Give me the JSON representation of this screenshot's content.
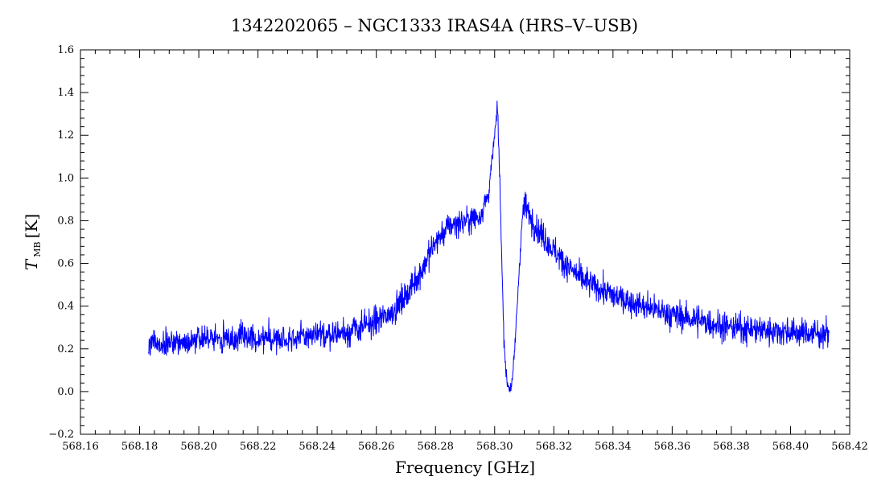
{
  "chart_data": {
    "type": "line",
    "title": "1342202065 – NGC1333 IRAS4A (HRS–V–USB)",
    "xlabel": "Frequency [GHz]",
    "ylabel_main": "T",
    "ylabel_sub": "MB",
    "ylabel_unit": "[K]",
    "xlim": [
      568.16,
      568.42
    ],
    "ylim": [
      -0.2,
      1.6
    ],
    "x_ticks": [
      "568.16",
      "568.18",
      "568.20",
      "568.22",
      "568.24",
      "568.26",
      "568.28",
      "568.30",
      "568.32",
      "568.34",
      "568.36",
      "568.38",
      "568.40",
      "568.42"
    ],
    "y_ticks": [
      "-0.2",
      "0.0",
      "0.2",
      "0.4",
      "0.6",
      "0.8",
      "1.0",
      "1.2",
      "1.4",
      "1.6"
    ],
    "grid": false,
    "series": [
      {
        "color": "#0000ff",
        "x": [
          568.183,
          568.19,
          568.2,
          568.21,
          568.22,
          568.23,
          568.24,
          568.25,
          568.255,
          568.26,
          568.265,
          568.27,
          568.275,
          568.28,
          568.285,
          568.29,
          568.295,
          568.298,
          568.3,
          568.301,
          568.302,
          568.303,
          568.304,
          568.305,
          568.306,
          568.307,
          568.308,
          568.309,
          568.31,
          568.312,
          568.315,
          568.32,
          568.325,
          568.33,
          568.34,
          568.35,
          568.36,
          568.37,
          568.38,
          568.39,
          568.4,
          568.41,
          568.413
        ],
        "values": [
          0.22,
          0.23,
          0.24,
          0.25,
          0.25,
          0.25,
          0.26,
          0.28,
          0.3,
          0.33,
          0.37,
          0.45,
          0.56,
          0.7,
          0.78,
          0.8,
          0.82,
          0.93,
          1.2,
          1.33,
          0.85,
          0.3,
          0.05,
          0.02,
          0.04,
          0.25,
          0.5,
          0.75,
          0.88,
          0.82,
          0.75,
          0.66,
          0.58,
          0.52,
          0.45,
          0.4,
          0.36,
          0.33,
          0.3,
          0.29,
          0.28,
          0.27,
          0.27
        ]
      }
    ]
  }
}
